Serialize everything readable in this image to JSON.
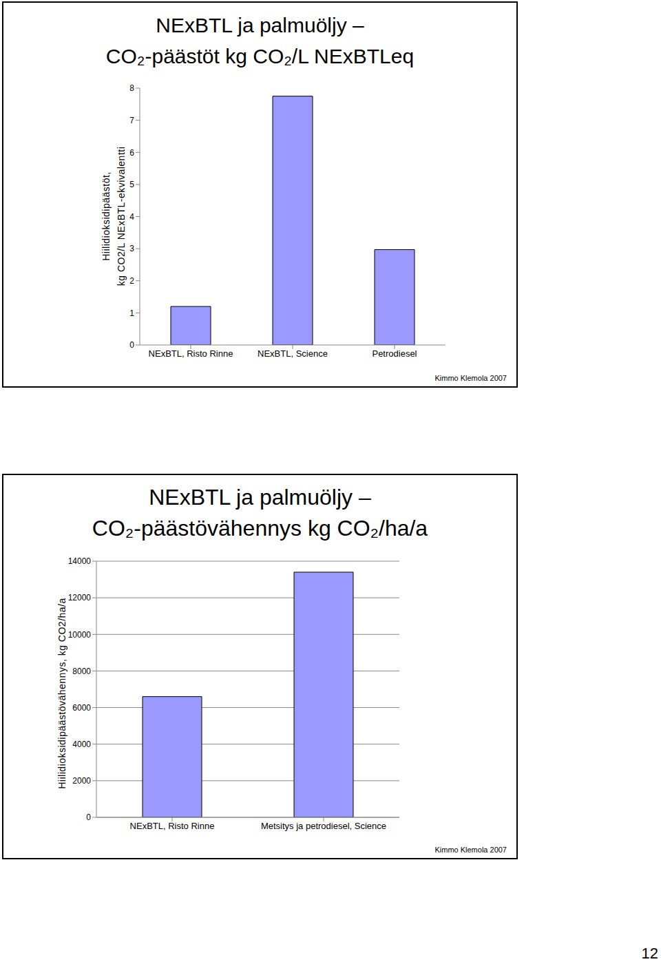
{
  "chart_data": [
    {
      "type": "bar",
      "title": "NExBTL ja palmuöljy –\nCO₂-päästöt kg CO₂/L NExBTLeq",
      "y_label": "Hiilidioksidipäästöt,\nkg CO2/L NExBTL-ekvivalentti",
      "categories": [
        "NExBTL, Risto Rinne",
        "NExBTL, Science",
        "Petrodiesel"
      ],
      "values": [
        1.2,
        7.75,
        2.97
      ],
      "color": "#9999ff",
      "ylim": [
        0,
        8
      ],
      "yticks": [
        0,
        1,
        2,
        3,
        4,
        5,
        6,
        7,
        8
      ],
      "grid": false,
      "annotation": "Kimmo Klemola 2007"
    },
    {
      "type": "bar",
      "title": "NExBTL ja palmuöljy –\nCO₂-päästövähennys kg CO₂/ha/a",
      "y_label": "Hiilidioksidipäästövähennys, kg CO2/ha/a",
      "categories": [
        "NExBTL, Risto Rinne",
        "Metsitys ja petrodiesel, Science"
      ],
      "values": [
        6600,
        13400
      ],
      "color": "#9999ff",
      "ylim": [
        0,
        14000
      ],
      "yticks": [
        0,
        2000,
        4000,
        6000,
        8000,
        10000,
        12000,
        14000
      ],
      "grid": true,
      "annotation": "Kimmo Klemola 2007"
    }
  ],
  "page_number": 12
}
